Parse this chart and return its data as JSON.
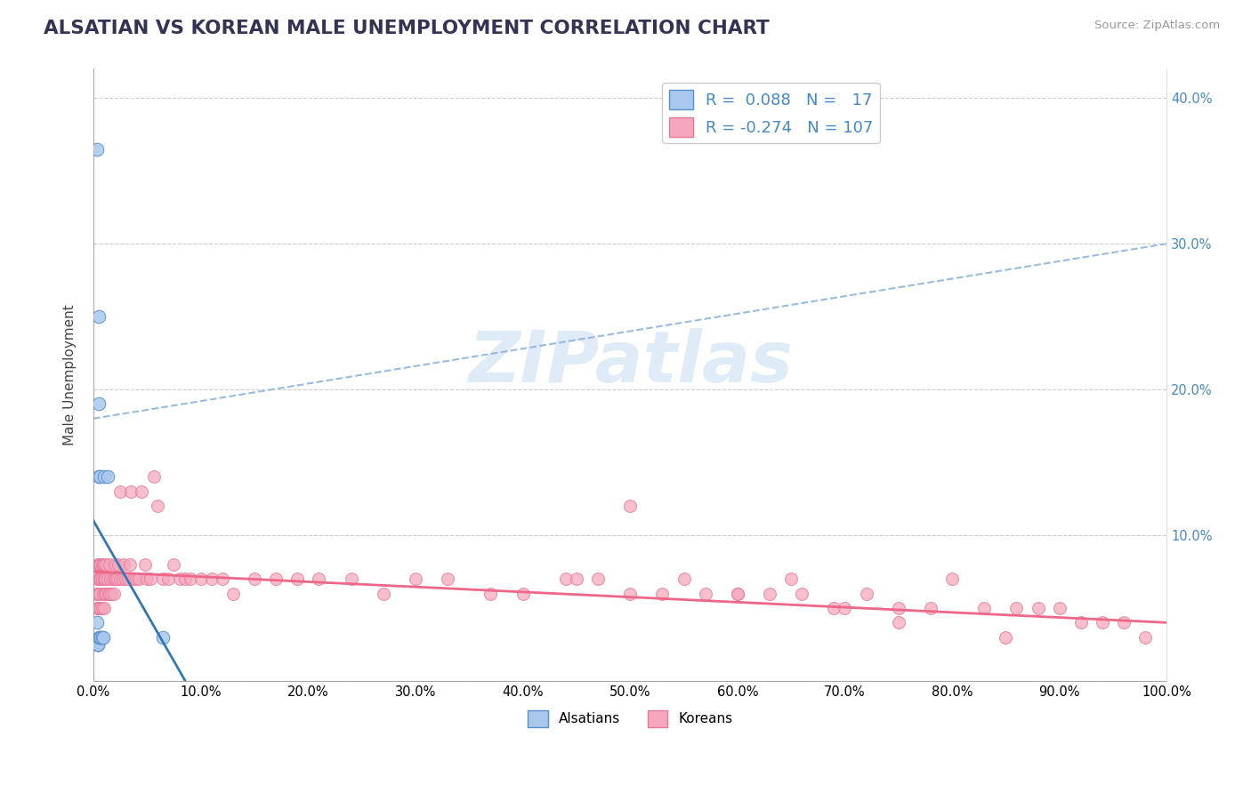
{
  "title": "ALSATIAN VS KOREAN MALE UNEMPLOYMENT CORRELATION CHART",
  "source": "Source: ZipAtlas.com",
  "ylabel": "Male Unemployment",
  "watermark": "ZIPatlas",
  "x_min": 0.0,
  "x_max": 1.0,
  "y_min": 0.0,
  "y_max": 0.42,
  "x_ticks": [
    0.0,
    0.1,
    0.2,
    0.3,
    0.4,
    0.5,
    0.6,
    0.7,
    0.8,
    0.9,
    1.0
  ],
  "x_tick_labels": [
    "0.0%",
    "10.0%",
    "20.0%",
    "30.0%",
    "40.0%",
    "50.0%",
    "60.0%",
    "70.0%",
    "80.0%",
    "90.0%",
    "100.0%"
  ],
  "y_ticks": [
    0.0,
    0.1,
    0.2,
    0.3,
    0.4
  ],
  "y_tick_labels_left": [
    "",
    "",
    "",
    "",
    ""
  ],
  "y_tick_labels_right": [
    "",
    "10.0%",
    "20.0%",
    "30.0%",
    "40.0%"
  ],
  "alsatian_color": "#aac8ee",
  "korean_color": "#f5a8bb",
  "alsatian_edge_color": "#5590cc",
  "korean_edge_color": "#e8789a",
  "alsatian_line_color": "#3377bb",
  "korean_line_color": "#ee6688",
  "dashed_line_color": "#99bbdd",
  "legend_R_alsatian": "0.088",
  "legend_N_alsatian": "17",
  "legend_R_korean": "-0.274",
  "legend_N_korean": "107",
  "alsatian_x": [
    0.003,
    0.003,
    0.004,
    0.004,
    0.004,
    0.005,
    0.005,
    0.005,
    0.005,
    0.006,
    0.006,
    0.007,
    0.008,
    0.009,
    0.01,
    0.013,
    0.065
  ],
  "alsatian_y": [
    0.365,
    0.04,
    0.025,
    0.025,
    0.025,
    0.25,
    0.19,
    0.14,
    0.03,
    0.14,
    0.03,
    0.03,
    0.03,
    0.03,
    0.14,
    0.14,
    0.03
  ],
  "korean_x": [
    0.003,
    0.003,
    0.003,
    0.004,
    0.004,
    0.004,
    0.005,
    0.005,
    0.005,
    0.005,
    0.006,
    0.006,
    0.006,
    0.007,
    0.007,
    0.007,
    0.008,
    0.008,
    0.008,
    0.009,
    0.009,
    0.01,
    0.01,
    0.01,
    0.011,
    0.011,
    0.012,
    0.012,
    0.013,
    0.014,
    0.015,
    0.015,
    0.016,
    0.017,
    0.018,
    0.019,
    0.02,
    0.02,
    0.021,
    0.022,
    0.023,
    0.025,
    0.025,
    0.027,
    0.028,
    0.03,
    0.032,
    0.034,
    0.035,
    0.037,
    0.04,
    0.042,
    0.045,
    0.048,
    0.05,
    0.053,
    0.056,
    0.06,
    0.065,
    0.07,
    0.075,
    0.08,
    0.085,
    0.09,
    0.1,
    0.11,
    0.12,
    0.13,
    0.15,
    0.17,
    0.19,
    0.21,
    0.24,
    0.27,
    0.3,
    0.33,
    0.37,
    0.4,
    0.44,
    0.47,
    0.5,
    0.53,
    0.57,
    0.6,
    0.63,
    0.66,
    0.69,
    0.72,
    0.75,
    0.78,
    0.8,
    0.83,
    0.86,
    0.88,
    0.9,
    0.92,
    0.94,
    0.96,
    0.98,
    0.5,
    0.6,
    0.65,
    0.7,
    0.75,
    0.85,
    0.55,
    0.45
  ],
  "korean_y": [
    0.07,
    0.06,
    0.05,
    0.08,
    0.06,
    0.05,
    0.08,
    0.07,
    0.06,
    0.05,
    0.08,
    0.07,
    0.06,
    0.08,
    0.07,
    0.05,
    0.08,
    0.07,
    0.05,
    0.08,
    0.06,
    0.08,
    0.07,
    0.05,
    0.07,
    0.06,
    0.08,
    0.06,
    0.07,
    0.06,
    0.08,
    0.06,
    0.07,
    0.06,
    0.07,
    0.06,
    0.08,
    0.07,
    0.07,
    0.07,
    0.08,
    0.13,
    0.07,
    0.07,
    0.08,
    0.07,
    0.07,
    0.08,
    0.13,
    0.07,
    0.07,
    0.07,
    0.13,
    0.08,
    0.07,
    0.07,
    0.14,
    0.12,
    0.07,
    0.07,
    0.08,
    0.07,
    0.07,
    0.07,
    0.07,
    0.07,
    0.07,
    0.06,
    0.07,
    0.07,
    0.07,
    0.07,
    0.07,
    0.06,
    0.07,
    0.07,
    0.06,
    0.06,
    0.07,
    0.07,
    0.06,
    0.06,
    0.06,
    0.06,
    0.06,
    0.06,
    0.05,
    0.06,
    0.05,
    0.05,
    0.07,
    0.05,
    0.05,
    0.05,
    0.05,
    0.04,
    0.04,
    0.04,
    0.03,
    0.12,
    0.06,
    0.07,
    0.05,
    0.04,
    0.03,
    0.07,
    0.07
  ],
  "background_color": "#ffffff",
  "grid_color": "#cccccc",
  "title_color": "#333355",
  "source_color": "#999999",
  "right_axis_color": "#4488cc"
}
